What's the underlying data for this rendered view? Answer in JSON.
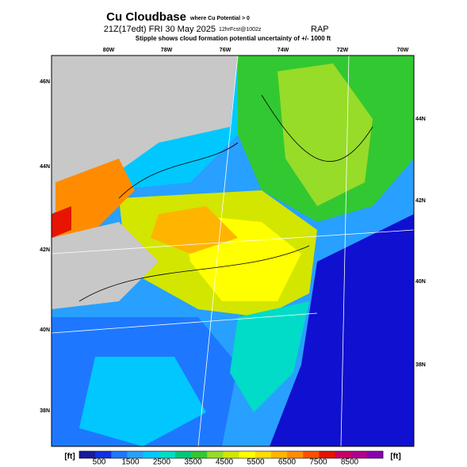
{
  "header": {
    "title": "Cu Cloudbase",
    "title_note": "where Cu Potential > 0",
    "valid_time": "21Z(17edt) FRI 30 May 2025",
    "forecast": "12hrFcst@1002z",
    "model": "RAP",
    "subtitle": "Stipple shows cloud formation potential uncertainty of +/- 1000 ft"
  },
  "map": {
    "top_lon_labels": [
      "80W",
      "78W",
      "76W",
      "74W",
      "72W",
      "70W"
    ],
    "left_lat_labels": [
      "46N",
      "44N",
      "42N",
      "40N",
      "38N"
    ],
    "right_lat_labels": [
      "44N",
      "42N",
      "40N",
      "38N"
    ]
  },
  "colorbar": {
    "unit_left": "[ft]",
    "unit_right": "[ft]",
    "ticks": [
      "500",
      "1500",
      "2500",
      "3500",
      "4500",
      "5500",
      "6500",
      "7500",
      "8500"
    ],
    "colors": [
      "#1a1aa0",
      "#1030e0",
      "#1e78ff",
      "#28a0ff",
      "#00c8ff",
      "#00dcc8",
      "#00c878",
      "#32c832",
      "#96dc28",
      "#d2e600",
      "#ffff00",
      "#ffdc00",
      "#ffb400",
      "#ff8c00",
      "#ff5000",
      "#e61400",
      "#c80064",
      "#b4008c",
      "#8c00b4"
    ]
  }
}
